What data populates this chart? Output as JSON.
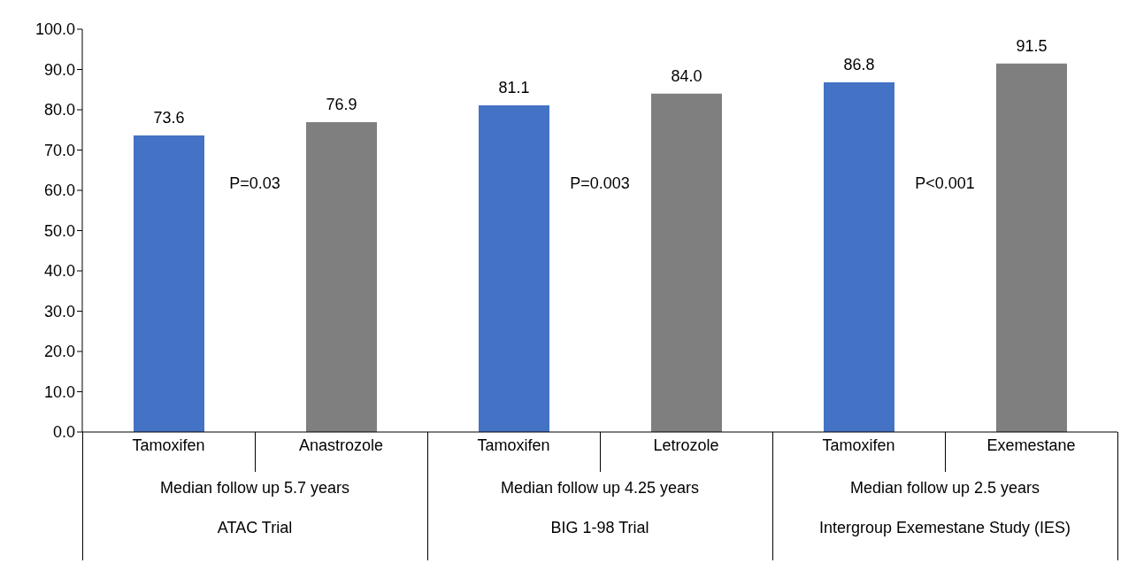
{
  "chart_data": {
    "type": "bar",
    "categories": [
      "Tamoxifen",
      "Anastrozole",
      "Tamoxifen",
      "Letrozole",
      "Tamoxifen",
      "Exemestane"
    ],
    "values": [
      73.6,
      76.9,
      81.1,
      84.0,
      86.8,
      91.5
    ],
    "colors": [
      "#4472c4",
      "#7f7f7f",
      "#4472c4",
      "#7f7f7f",
      "#4472c4",
      "#7f7f7f"
    ],
    "value_labels": [
      "73.6",
      "76.9",
      "81.1",
      "84.0",
      "86.8",
      "91.5"
    ],
    "ylim": [
      0,
      100
    ],
    "yticks": [
      {
        "value": 0,
        "label": "0.0"
      },
      {
        "value": 10,
        "label": "10.0"
      },
      {
        "value": 20,
        "label": "20.0"
      },
      {
        "value": 30,
        "label": "30.0"
      },
      {
        "value": 40,
        "label": "40.0"
      },
      {
        "value": 50,
        "label": "50.0"
      },
      {
        "value": 60,
        "label": "60.0"
      },
      {
        "value": 70,
        "label": "70.0"
      },
      {
        "value": 80,
        "label": "80.0"
      },
      {
        "value": 90,
        "label": "90.0"
      },
      {
        "value": 100,
        "label": "100.0"
      }
    ],
    "grid": false,
    "legend": false,
    "annotations": [
      "P=0.03",
      "P=0.003",
      "P<0.001",
      "Median follow up 5.7 years",
      "Median follow up 4.25 years",
      "Median follow up 2.5 years",
      "ATAC Trial",
      "BIG 1-98 Trial",
      "Intergroup Exemestane Study (IES)"
    ]
  }
}
